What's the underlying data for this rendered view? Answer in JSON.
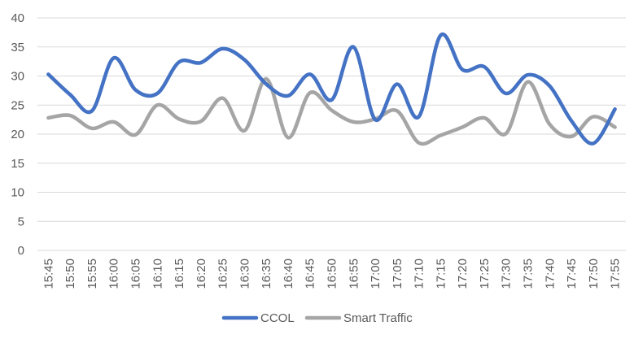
{
  "chart_data": {
    "type": "line",
    "title": "",
    "xlabel": "",
    "ylabel": "",
    "categories": [
      "15:45",
      "15:50",
      "15:55",
      "16:00",
      "16:05",
      "16:10",
      "16:15",
      "16:20",
      "16:25",
      "16:30",
      "16:35",
      "16:40",
      "16:45",
      "16:50",
      "16:55",
      "17:00",
      "17:05",
      "17:10",
      "17:15",
      "17:20",
      "17:25",
      "17:30",
      "17:35",
      "17:40",
      "17:45",
      "17:50",
      "17:55"
    ],
    "y_ticks": [
      "0",
      "5",
      "10",
      "15",
      "20",
      "25",
      "30",
      "35",
      "40"
    ],
    "ylim": [
      0,
      40
    ],
    "grid": true,
    "smooth": true,
    "legend_position": "bottom",
    "series": [
      {
        "name": "CCOL",
        "color": "#4472C4",
        "values": [
          30.3,
          26.8,
          24.0,
          33.1,
          27.6,
          27.0,
          32.4,
          32.3,
          34.7,
          32.8,
          28.6,
          26.6,
          30.3,
          25.9,
          35.0,
          22.5,
          28.6,
          23.0,
          37.0,
          31.1,
          31.6,
          27.0,
          30.2,
          28.3,
          22.3,
          18.4,
          24.3
        ]
      },
      {
        "name": "Smart Traffic",
        "color": "#A5A5A5",
        "values": [
          22.8,
          23.2,
          21.0,
          22.1,
          19.9,
          25.0,
          22.6,
          22.2,
          26.2,
          20.6,
          29.5,
          19.4,
          27.1,
          24.1,
          22.1,
          22.6,
          24.0,
          18.5,
          19.8,
          21.2,
          22.8,
          20.1,
          29.0,
          21.7,
          19.6,
          23.0,
          21.2
        ]
      }
    ]
  }
}
